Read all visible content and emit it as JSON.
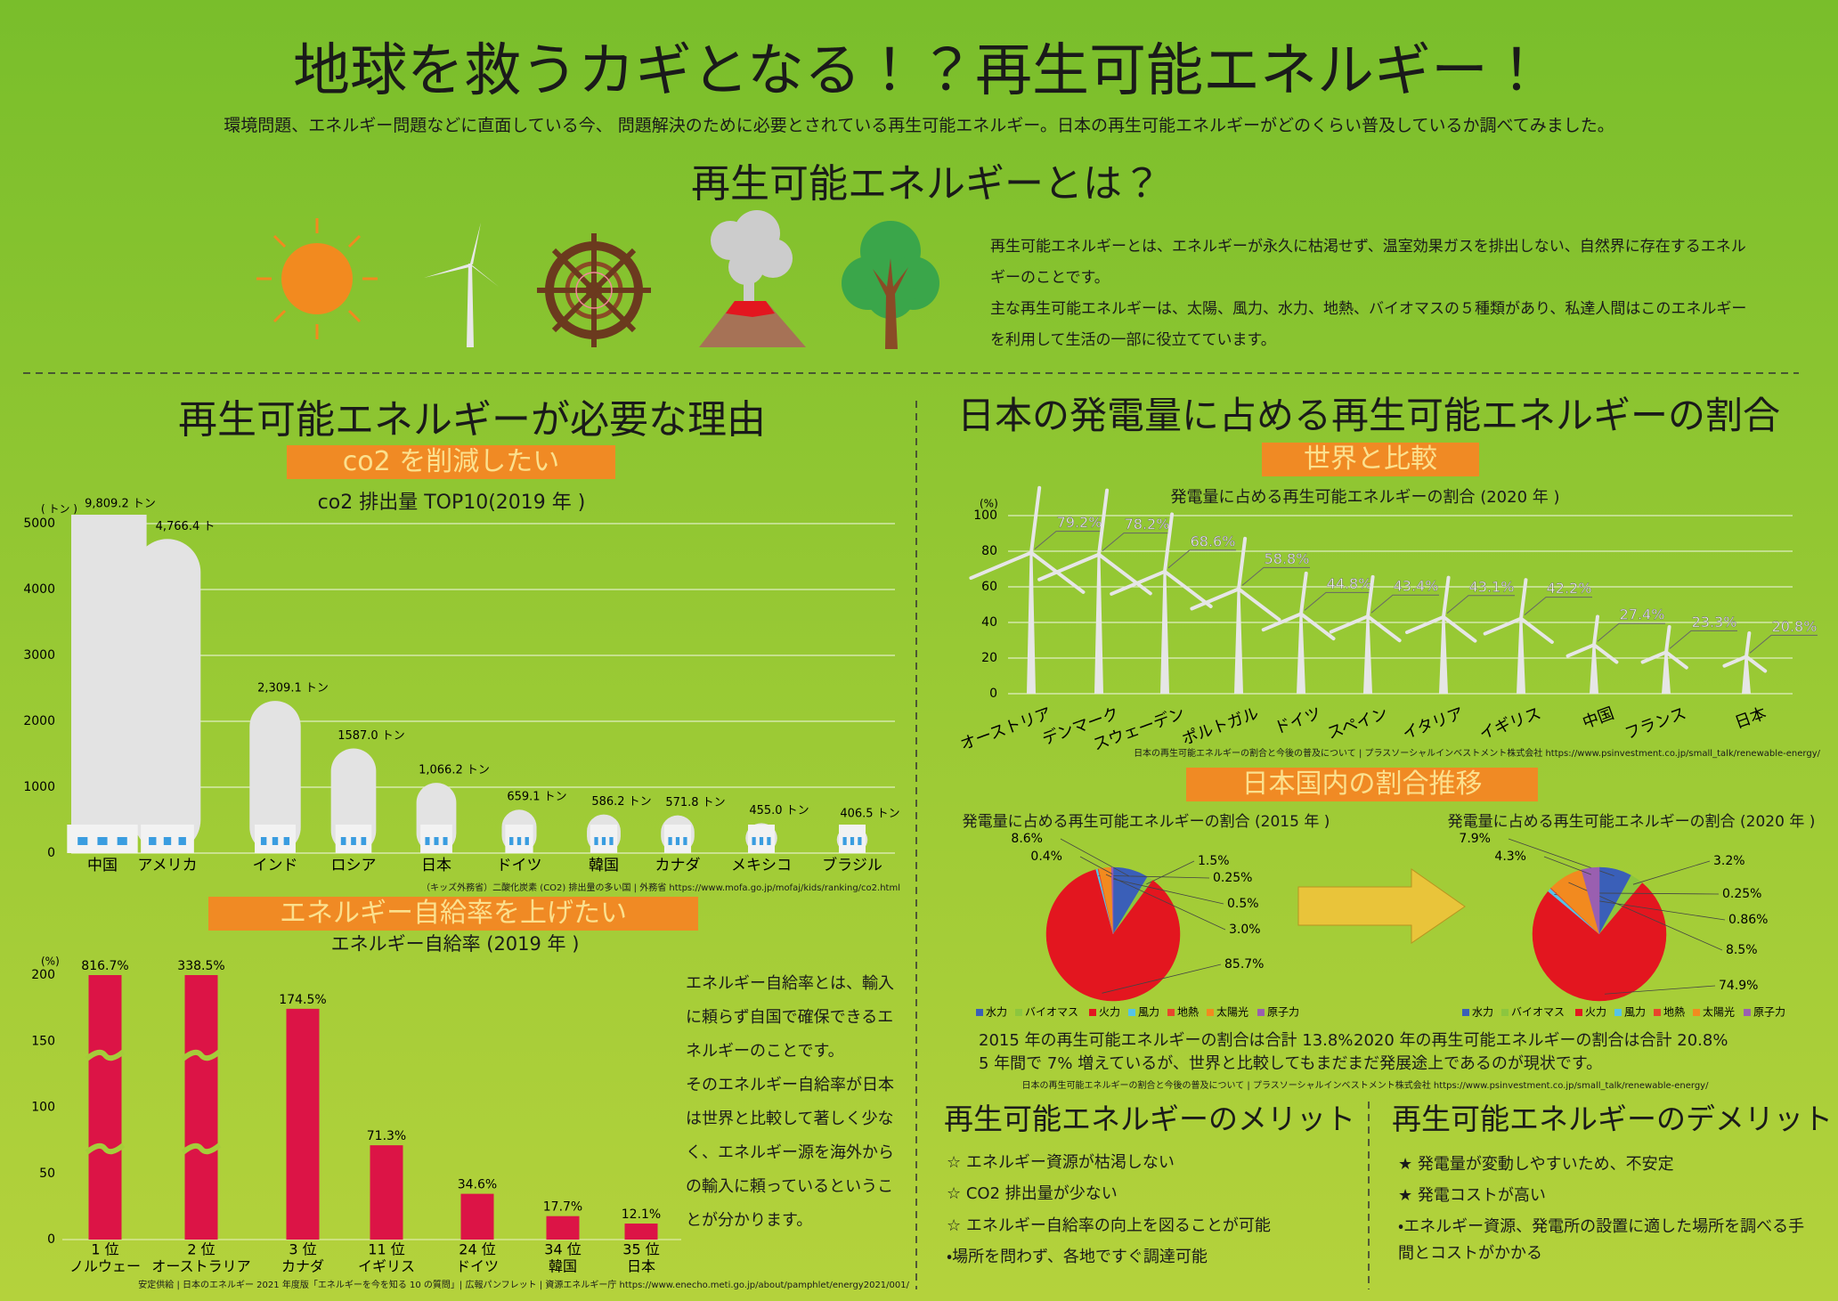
{
  "header": {
    "title": "地球を救うカギとなる！？再生可能エネルギー！",
    "subtitle": "環境問題、エネルギー問題などに直面している今、 問題解決のために必要とされている再生可能エネルギー。日本の再生可能エネルギーがどのくらい普及しているか調べてみました。"
  },
  "about": {
    "heading": "再生可能エネルギーとは？",
    "paragraphs": [
      "再生可能エネルギーとは、エネルギーが永久に枯渇せず、温室効果ガスを排出しない、自然界に存在するエネルギーのことです。",
      "主な再生可能エネルギーは、太陽、風力、水力、地熱、バイオマスの５種類があり、私達人間はこのエネルギーを利用して生活の一部に役立てています。"
    ]
  },
  "left": {
    "heading": "再生可能エネルギーが必要な理由",
    "tag1": "co2 を削減したい",
    "tag2": "エネルギー自給率を上げたい",
    "side_text": [
      "エネルギー自給率とは、輸入に頼らず自国で確保できるエネルギーのことです。",
      "そのエネルギー自給率が日本は世界と比較して著しく少なく、エネルギー源を海外からの輸入に頼っているということが分かります。"
    ]
  },
  "right": {
    "heading": "日本の発電量に占める再生可能エネルギーの割合",
    "tag1": "世界と比較",
    "tag2": "日本国内の割合推移",
    "note_2015": "2015 年の再生可能エネルギーの割合は合計 13.8%",
    "note_2020": "2020 年の再生可能エネルギーの割合は合計 20.8%",
    "note_change": "5 年間で 7% 増えているが、世界と比較してもまだまだ発展途上であるのが現状です。",
    "pie_source": "日本の再生可能エネルギーの割合と今後の普及について | プラスソーシャルインベストメント株式会社 https://www.psinvestment.co.jp/small_talk/renewable-energy/"
  },
  "merits": {
    "heading": "再生可能エネルギーのメリット",
    "items": [
      "☆ エネルギー資源が枯渇しない",
      "☆ CO2 排出量が少ない",
      "☆ エネルギー自給率の向上を図ることが可能",
      "・場所を問わず、各地ですぐ調達可能"
    ]
  },
  "demerits": {
    "heading": "再生可能エネルギーのデメリット",
    "items": [
      "★ 発電量が変動しやすいため、不安定",
      "★ 発電コストが高い",
      "・エネルギー資源、発電所の設置に適した場所を調べる手間とコストがかかる"
    ]
  },
  "chart_data": [
    {
      "type": "smoke",
      "title": "co2 排出量 TOP10(2019 年 )",
      "y_unit": "( トン )",
      "categories": [
        "中国",
        "アメリカ",
        "インド",
        "ロシア",
        "日本",
        "ドイツ",
        "韓国",
        "カナダ",
        "メキシコ",
        "ブラジル"
      ],
      "values": [
        9809.2,
        4766.4,
        2309.1,
        1587.0,
        1066.2,
        659.1,
        586.2,
        571.8,
        455.0,
        406.5
      ],
      "value_labels": [
        "9,809.2 トン",
        "4,766.4 ト",
        "2,309.1 トン",
        "1587.0 トン",
        "1,066.2 トン",
        "659.1 トン",
        "586.2 トン",
        "571.8 トン",
        "455.0 トン",
        "406.5 トン"
      ],
      "color": "#e3e3e3",
      "ylim": [
        0,
        5000
      ],
      "yticks": [
        0,
        1000,
        2000,
        3000,
        4000,
        5000
      ],
      "grid": true,
      "source": "（キッズ外務省）二酸化炭素 (CO2) 排出量の多い国 | 外務省 https://www.mofa.go.jp/mofaj/kids/ranking/co2.html"
    },
    {
      "type": "bar",
      "title": "エネルギー自給率 (2019 年 )",
      "y_unit": "(%)",
      "ranks": [
        "1 位",
        "2 位",
        "3 位",
        "11 位",
        "24 位",
        "34 位",
        "35 位"
      ],
      "categories": [
        "ノルウェー",
        "オーストラリア",
        "カナダ",
        "イギリス",
        "ドイツ",
        "韓国",
        "日本"
      ],
      "values": [
        816.7,
        338.5,
        174.5,
        71.3,
        34.6,
        17.7,
        12.1
      ],
      "value_labels": [
        "816.7%",
        "338.5%",
        "174.5%",
        "71.3%",
        "34.6%",
        "17.7%",
        "12.1%"
      ],
      "color": "#dc1446",
      "ylim": [
        0,
        200
      ],
      "yticks": [
        0,
        50,
        100,
        150,
        200
      ],
      "source": "安定供給 | 日本のエネルギー 2021 年度版「エネルギーを今を知る 10 の質問」| 広報パンフレット | 資源エネルギー庁 https://www.enecho.meti.go.jp/about/pamphlet/energy2021/001/"
    },
    {
      "type": "turbine",
      "title": "発電量に占める再生可能エネルギーの割合 (2020 年 )",
      "y_unit": "(%)",
      "categories": [
        "オーストリア",
        "デンマーク",
        "スウェーデン",
        "ポルトガル",
        "ドイツ",
        "スペイン",
        "イタリア",
        "イギリス",
        "中国",
        "フランス",
        "日本"
      ],
      "values": [
        79.2,
        78.2,
        68.6,
        58.8,
        44.8,
        43.4,
        43.1,
        42.2,
        27.4,
        23.3,
        20.8
      ],
      "value_labels": [
        "79.2%",
        "78.2%",
        "68.6%",
        "58.8%",
        "44.8%",
        "43.4%",
        "43.1%",
        "42.2%",
        "27.4%",
        "23.3%",
        "20.8%"
      ],
      "color": "#e6e6e6",
      "ylim": [
        0,
        100
      ],
      "yticks": [
        0,
        20,
        40,
        60,
        80,
        100
      ],
      "grid": true,
      "source": "日本の再生可能エネルギーの割合と今後の普及について | プラスソーシャルインベストメント株式会社 https://www.psinvestment.co.jp/small_talk/renewable-energy/"
    },
    {
      "type": "pie",
      "title": "発電量に占める再生可能エネルギーの割合 (2015 年 )",
      "categories": [
        "水力",
        "バイオマス",
        "火力",
        "風力",
        "地熱",
        "太陽光",
        "原子力"
      ],
      "values": [
        8.6,
        1.5,
        85.7,
        0.5,
        0.25,
        3.0,
        0.4
      ],
      "value_labels": [
        "8.6%",
        "1.5%",
        "85.7%",
        "0.5%",
        "0.25%",
        "3.0%",
        "0.4%"
      ],
      "colors": [
        "#3a5fb8",
        "#8cc63e",
        "#e3161f",
        "#55c3e8",
        "#e8452c",
        "#f28a1f",
        "#9a5fb0"
      ]
    },
    {
      "type": "pie",
      "title": "発電量に占める再生可能エネルギーの割合 (2020 年 )",
      "categories": [
        "水力",
        "バイオマス",
        "火力",
        "風力",
        "地熱",
        "太陽光",
        "原子力"
      ],
      "values": [
        7.9,
        3.2,
        74.9,
        0.86,
        0.25,
        8.5,
        4.3
      ],
      "value_labels": [
        "7.9%",
        "3.2%",
        "74.9%",
        "0.86%",
        "0.25%",
        "8.5%",
        "4.3%"
      ],
      "colors": [
        "#3a5fb8",
        "#8cc63e",
        "#e3161f",
        "#55c3e8",
        "#e8452c",
        "#f28a1f",
        "#9a5fb0"
      ]
    }
  ]
}
